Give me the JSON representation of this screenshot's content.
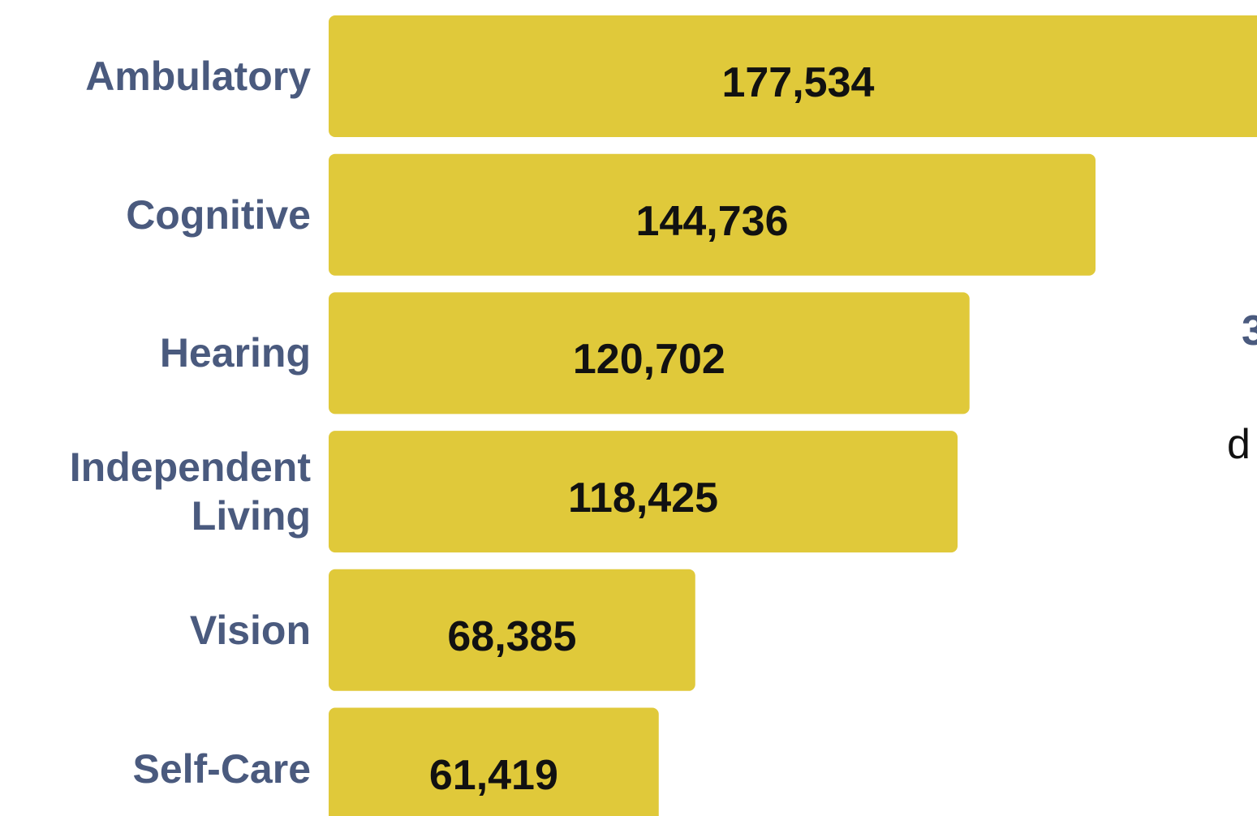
{
  "chart_data": {
    "type": "bar",
    "orientation": "horizontal",
    "categories": [
      "Ambulatory",
      "Cognitive",
      "Hearing",
      "Independent Living",
      "Vision",
      "Self-Care"
    ],
    "values": [
      177534,
      144736,
      120702,
      118425,
      68385,
      61419
    ],
    "value_labels": [
      "177,534",
      "144,736",
      "120,702",
      "118,425",
      "68,385",
      "61,419"
    ],
    "color": "#e0c93a",
    "annotations": [
      "3",
      "d"
    ]
  }
}
